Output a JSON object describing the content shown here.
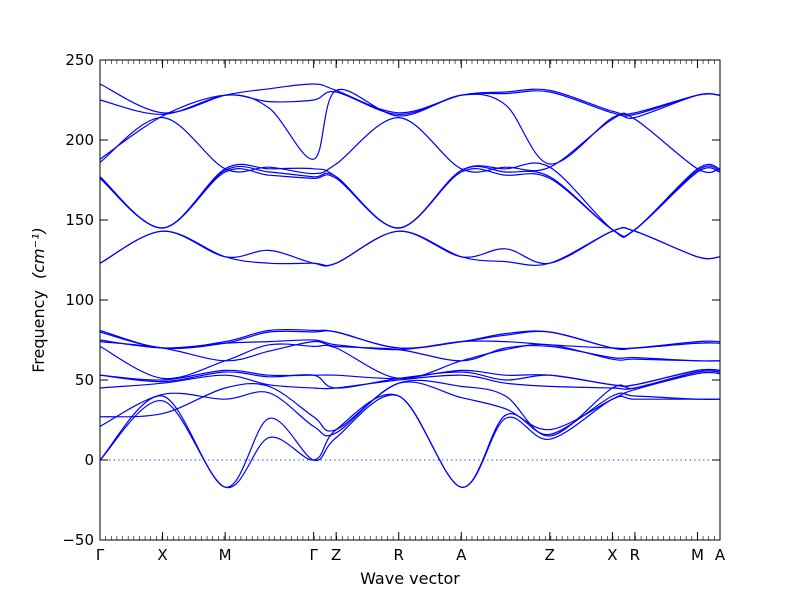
{
  "chart_data": {
    "type": "line",
    "title": "",
    "xlabel": "Wave vector",
    "ylabel": "Frequency",
    "ylabel_unit": "(cm⁻¹)",
    "ylim": [
      -50,
      250
    ],
    "yticks": [
      -50,
      0,
      50,
      100,
      150,
      200,
      250
    ],
    "grid": false,
    "legend": "none",
    "line_color": "#0000ff",
    "zero_line": {
      "y": 0,
      "style": "dotted",
      "color": "#0000ff"
    },
    "x_ticks": [
      {
        "label": "Γ",
        "pos": 0.0
      },
      {
        "label": "X",
        "pos": 0.5
      },
      {
        "label": "M",
        "pos": 1.0
      },
      {
        "label": "Γ",
        "pos": 1.707
      },
      {
        "label": "Z",
        "pos": 1.887
      },
      {
        "label": "R",
        "pos": 2.387
      },
      {
        "label": "A",
        "pos": 2.887
      },
      {
        "label": "Z",
        "pos": 3.594
      },
      {
        "label": "X",
        "pos": 4.094
      },
      {
        "label": "R",
        "pos": 4.274
      },
      {
        "label": "M",
        "pos": 4.774
      },
      {
        "label": "A",
        "pos": 4.954
      }
    ],
    "x": [
      0.0,
      0.5,
      1.0,
      1.35,
      1.707,
      1.887,
      2.387,
      2.887,
      3.24,
      3.594,
      4.094,
      4.274,
      4.774,
      4.954
    ],
    "series": [
      {
        "values": [
          0,
          37,
          -17,
          14,
          0,
          19,
          40,
          -17,
          26,
          13,
          38,
          38,
          38,
          38
        ]
      },
      {
        "values": [
          0,
          40,
          -17,
          26,
          0,
          14,
          40,
          -17,
          28,
          16,
          40,
          40,
          38,
          38
        ]
      },
      {
        "values": [
          21,
          41,
          38,
          42,
          21,
          17,
          48,
          39,
          32,
          19,
          38,
          44,
          54,
          54
        ]
      },
      {
        "values": [
          27,
          29,
          45,
          46,
          27,
          19,
          48,
          46,
          40,
          15,
          45,
          45,
          55,
          55
        ]
      },
      {
        "values": [
          45,
          48,
          53,
          47,
          45,
          45,
          50,
          53,
          48,
          46,
          45,
          45,
          55,
          55
        ]
      },
      {
        "values": [
          53,
          49,
          55,
          52,
          53,
          45,
          51,
          55,
          50,
          53,
          47,
          47,
          56,
          56
        ]
      },
      {
        "values": [
          53,
          50,
          56,
          53,
          53,
          53,
          51,
          56,
          53,
          53,
          47,
          47,
          56,
          56
        ]
      },
      {
        "values": [
          71,
          51,
          62,
          72,
          71,
          70,
          51,
          62,
          69,
          72,
          63,
          63,
          62,
          62
        ]
      },
      {
        "values": [
          74,
          70,
          62,
          68,
          74,
          71,
          69,
          62,
          70,
          71,
          64,
          64,
          62,
          62
        ]
      },
      {
        "values": [
          75,
          70,
          73,
          74,
          75,
          72,
          69,
          74,
          74,
          72,
          70,
          70,
          73,
          73
        ]
      },
      {
        "values": [
          80,
          70,
          73,
          80,
          80,
          80,
          70,
          74,
          78,
          80,
          70,
          70,
          73,
          73
        ]
      },
      {
        "values": [
          81,
          70,
          74,
          81,
          81,
          80,
          70,
          74,
          79,
          80,
          70,
          70,
          74,
          74
        ]
      },
      {
        "values": [
          123,
          143,
          127,
          123,
          123,
          123,
          143,
          127,
          124,
          123,
          143,
          143,
          127,
          127
        ]
      },
      {
        "values": [
          123,
          143,
          127,
          131,
          123,
          123,
          143,
          127,
          132,
          123,
          143,
          143,
          127,
          127
        ]
      },
      {
        "values": [
          176,
          145,
          180,
          178,
          176,
          176,
          145,
          180,
          178,
          176,
          144,
          144,
          180,
          180
        ]
      },
      {
        "values": [
          177,
          145,
          181,
          180,
          177,
          177,
          145,
          181,
          180,
          177,
          144,
          144,
          181,
          181
        ]
      },
      {
        "values": [
          177,
          145,
          182,
          182,
          182,
          177,
          145,
          181,
          182,
          183,
          144,
          144,
          182,
          182
        ]
      },
      {
        "values": [
          186,
          214,
          182,
          183,
          179,
          185,
          214,
          182,
          183,
          183,
          213,
          213,
          182,
          182
        ]
      },
      {
        "values": [
          188,
          215,
          228,
          220,
          188,
          231,
          215,
          228,
          222,
          185,
          214,
          214,
          228,
          228
        ]
      },
      {
        "values": [
          225,
          216,
          228,
          224,
          225,
          230,
          216,
          228,
          229,
          230,
          217,
          216,
          228,
          228
        ]
      },
      {
        "values": [
          235,
          217,
          228,
          232,
          235,
          231,
          217,
          228,
          230,
          231,
          218,
          217,
          228,
          228
        ]
      }
    ]
  }
}
